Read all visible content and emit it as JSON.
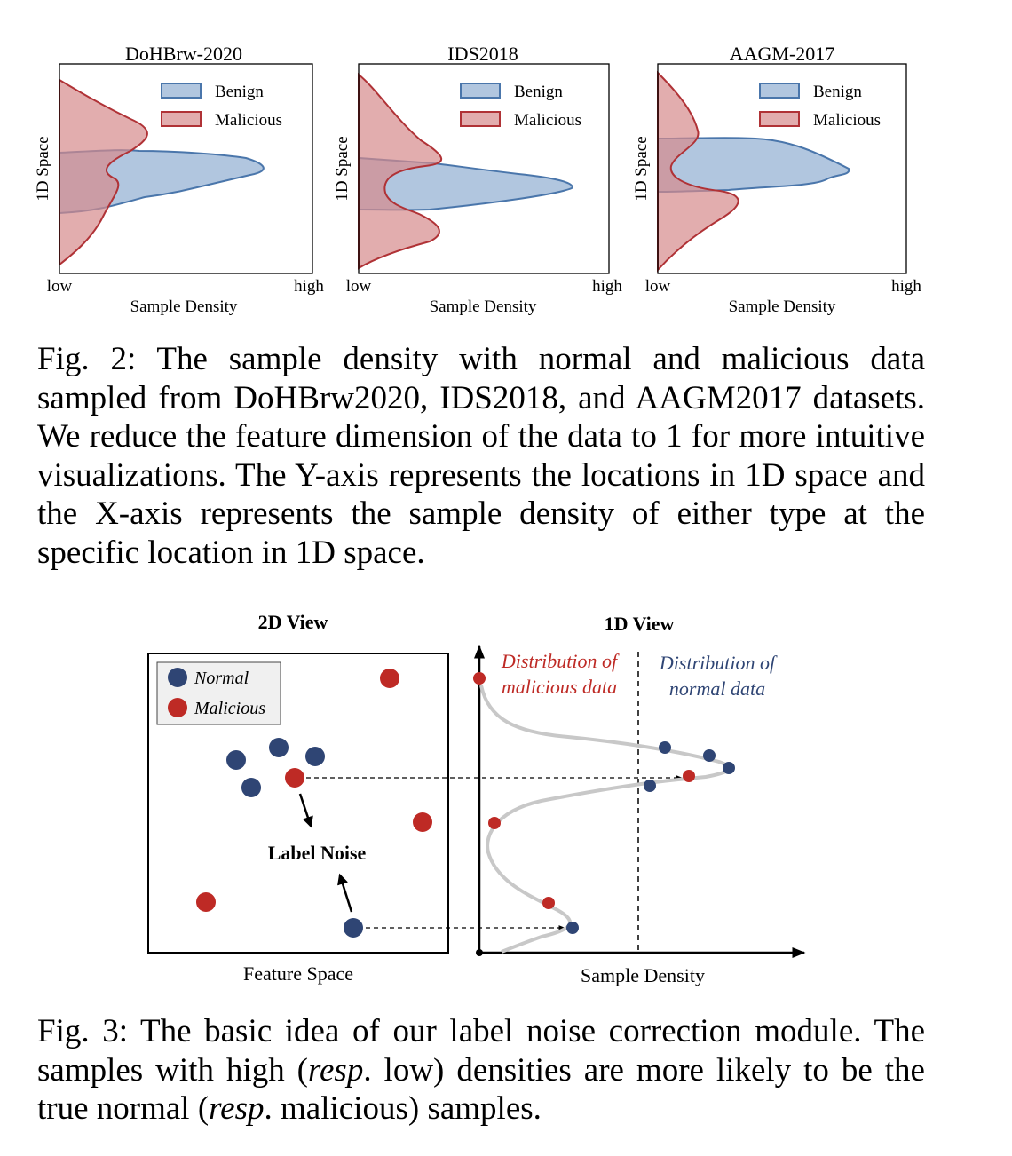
{
  "figure2": {
    "panels": [
      {
        "title": "DoHBrw-2020",
        "ylabel": "1D Space",
        "xlabel": "Sample Density",
        "x_low": "low",
        "x_high": "high"
      },
      {
        "title": "IDS2018",
        "ylabel": "1D Space",
        "xlabel": "Sample Density",
        "x_low": "low",
        "x_high": "high"
      },
      {
        "title": "AAGM-2017",
        "ylabel": "1D Space",
        "xlabel": "Sample Density",
        "x_low": "low",
        "x_high": "high"
      }
    ],
    "legend": {
      "benign": "Benign",
      "malicious": "Malicious"
    },
    "colors": {
      "benign_fill": "#a3bcd9",
      "benign_line": "#4a76ab",
      "malicious_fill": "#d58a8c",
      "malicious_line": "#b03236"
    },
    "caption": "Fig. 2: The sample density with normal and malicious data sampled from DoHBrw2020, IDS2018, and AAGM2017 datasets. We reduce the feature dimension of the data to 1 for more intuitive visualizations. The Y-axis represents the locations in 1D space and the X-axis represents the sample density of either type at the specific location in 1D space."
  },
  "figure3": {
    "view2d_title": "2D View",
    "view1d_title": "1D View",
    "legend": {
      "normal": "Normal",
      "malicious": "Malicious"
    },
    "label_noise": "Label Noise",
    "feature_space_label": "Feature Space",
    "sample_density_label": "Sample Density",
    "dist_malicious": [
      "Distribution of",
      "malicious data"
    ],
    "dist_normal": [
      "Distribution of",
      "normal data"
    ],
    "colors": {
      "normal": "#2f4574",
      "malicious": "#be2a25",
      "curve": "#c8c8c8"
    },
    "caption_parts": [
      {
        "text": "Fig. 3: The basic idea of our label noise correction module. The samples with high (",
        "italic": false
      },
      {
        "text": "resp",
        "italic": true
      },
      {
        "text": ". low) densities are more likely to be the true normal (",
        "italic": false
      },
      {
        "text": "resp",
        "italic": true
      },
      {
        "text": ". malicious) samples.",
        "italic": false
      }
    ]
  }
}
